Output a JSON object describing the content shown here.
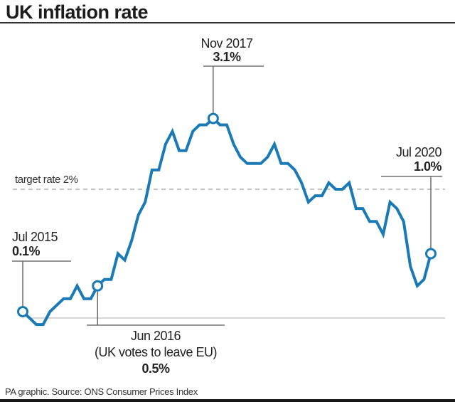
{
  "header": {
    "title": "UK inflation rate"
  },
  "footer": {
    "source": "PA graphic. Source: ONS Consumer Prices Index"
  },
  "colors": {
    "line": "#1a7ab5",
    "baseline": "#c8c8c8",
    "target": "#a0a0a0",
    "annotation": "#555555"
  },
  "chart_data": {
    "type": "line",
    "title": "UK inflation rate",
    "xlabel": "",
    "ylabel": "",
    "ylim": [
      0,
      3.4
    ],
    "grid": false,
    "x_start": "Jul 2015",
    "x_end": "Jul 2020",
    "x": [
      "Jul 2015",
      "Aug 2015",
      "Sep 2015",
      "Oct 2015",
      "Nov 2015",
      "Dec 2015",
      "Jan 2016",
      "Feb 2016",
      "Mar 2016",
      "Apr 2016",
      "May 2016",
      "Jun 2016",
      "Jul 2016",
      "Aug 2016",
      "Sep 2016",
      "Oct 2016",
      "Nov 2016",
      "Dec 2016",
      "Jan 2017",
      "Feb 2017",
      "Mar 2017",
      "Apr 2017",
      "May 2017",
      "Jun 2017",
      "Jul 2017",
      "Aug 2017",
      "Sep 2017",
      "Oct 2017",
      "Nov 2017",
      "Dec 2017",
      "Jan 2018",
      "Feb 2018",
      "Mar 2018",
      "Apr 2018",
      "May 2018",
      "Jun 2018",
      "Jul 2018",
      "Aug 2018",
      "Sep 2018",
      "Oct 2018",
      "Nov 2018",
      "Dec 2018",
      "Jan 2019",
      "Feb 2019",
      "Mar 2019",
      "Apr 2019",
      "May 2019",
      "Jun 2019",
      "Jul 2019",
      "Aug 2019",
      "Sep 2019",
      "Oct 2019",
      "Nov 2019",
      "Dec 2019",
      "Jan 2020",
      "Feb 2020",
      "Mar 2020",
      "Apr 2020",
      "May 2020",
      "Jun 2020",
      "Jul 2020"
    ],
    "series": [
      {
        "name": "CPI annual rate (%)",
        "values": [
          0.1,
          0.0,
          -0.1,
          -0.1,
          0.1,
          0.2,
          0.3,
          0.3,
          0.5,
          0.3,
          0.3,
          0.5,
          0.6,
          0.6,
          1.0,
          0.9,
          1.2,
          1.6,
          1.8,
          2.3,
          2.3,
          2.7,
          2.9,
          2.6,
          2.6,
          2.9,
          3.0,
          3.0,
          3.1,
          3.0,
          3.0,
          2.7,
          2.5,
          2.4,
          2.4,
          2.4,
          2.5,
          2.7,
          2.4,
          2.4,
          2.3,
          2.1,
          1.8,
          1.9,
          1.9,
          2.1,
          2.0,
          2.0,
          2.1,
          1.7,
          1.7,
          1.5,
          1.5,
          1.3,
          1.8,
          1.7,
          1.5,
          0.8,
          0.5,
          0.6,
          1.0
        ]
      }
    ],
    "reference_lines": [
      {
        "label": "target rate 2%",
        "value": 2.0
      }
    ],
    "annotations": [
      {
        "date": "Jul 2015",
        "value": "0.1%",
        "index": 0
      },
      {
        "date": "Jun 2016",
        "note": "(UK votes to leave EU)",
        "value": "0.5%",
        "index": 11
      },
      {
        "date": "Nov 2017",
        "value": "3.1%",
        "index": 28
      },
      {
        "date": "Jul 2020",
        "value": "1.0%",
        "index": 60
      }
    ]
  }
}
